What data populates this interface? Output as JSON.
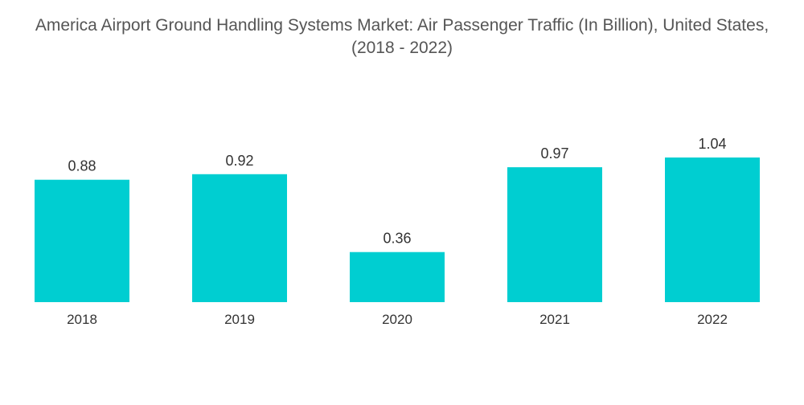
{
  "chart_data": {
    "type": "bar",
    "title": "America Airport Ground Handling Systems Market: Air Passenger Traffic (In Billion), United States, (2018 - 2022)",
    "categories": [
      "2018",
      "2019",
      "2020",
      "2021",
      "2022"
    ],
    "values": [
      0.88,
      0.92,
      0.36,
      0.97,
      1.04
    ],
    "value_labels": [
      "0.88",
      "0.92",
      "0.36",
      "0.97",
      "1.04"
    ],
    "xlabel": "",
    "ylabel": "",
    "ylim": [
      0,
      1.04
    ],
    "grid": false,
    "legend": "none",
    "bar_color": "#00CED1"
  }
}
